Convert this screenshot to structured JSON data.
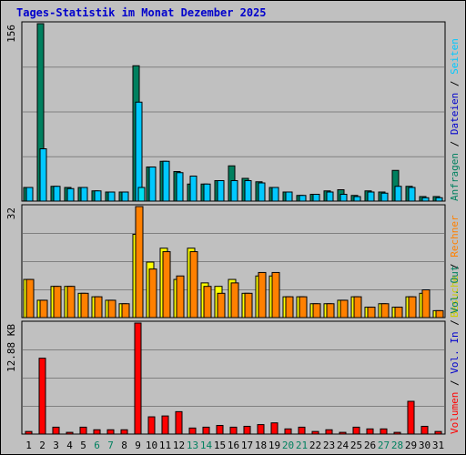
{
  "title": "Tages-Statistik im Monat Dezember 2025",
  "colors": {
    "anfragen": "#00805f",
    "dateien": "#00c8ff",
    "seiten": "#00e0f0",
    "besuche": "#ffff00",
    "rechner": "#ff8000",
    "volumen": "#ff0000",
    "weekend_label": "#00805f"
  },
  "legend": {
    "top": [
      {
        "text": "Anfragen",
        "color": "#00805f"
      },
      {
        "text": " / ",
        "color": "#000000"
      },
      {
        "text": "Dateien",
        "color": "#0000cc"
      },
      {
        "text": " / ",
        "color": "#000000"
      },
      {
        "text": "Seiten",
        "color": "#00c8ff"
      }
    ],
    "middle": [
      {
        "text": "Besuche",
        "color": "#cccc00"
      },
      {
        "text": " / ",
        "color": "#000000"
      },
      {
        "text": "Rechner",
        "color": "#ff8000"
      }
    ],
    "bottom": [
      {
        "text": "Volumen",
        "color": "#ff0000"
      },
      {
        "text": " / ",
        "color": "#000000"
      },
      {
        "text": "Vol. In",
        "color": "#0000cc"
      },
      {
        "text": " / ",
        "color": "#000000"
      },
      {
        "text": "Vol. Out",
        "color": "#00805f"
      }
    ]
  },
  "chart_data": {
    "type": "bar",
    "categories": [
      "1",
      "2",
      "3",
      "4",
      "5",
      "6",
      "7",
      "8",
      "9",
      "10",
      "11",
      "12",
      "13",
      "14",
      "15",
      "16",
      "17",
      "18",
      "19",
      "20",
      "21",
      "22",
      "23",
      "24",
      "25",
      "26",
      "27",
      "28",
      "29",
      "30",
      "31"
    ],
    "weekend_days": [
      "6",
      "7",
      "13",
      "14",
      "20",
      "21",
      "27",
      "28"
    ],
    "panels": [
      {
        "id": "hits",
        "ymax_label": "156",
        "ylim": [
          0,
          156
        ],
        "series": [
          {
            "name": "Anfragen",
            "values": [
              12,
              156,
              13,
              12,
              12,
              9,
              8,
              8,
              119,
              30,
              35,
              26,
              15,
              15,
              18,
              31,
              20,
              17,
              12,
              8,
              5,
              6,
              9,
              10,
              5,
              9,
              8,
              27,
              13,
              4,
              4
            ]
          },
          {
            "name": "Dateien",
            "values": [
              12,
              46,
              13,
              11,
              12,
              9,
              8,
              8,
              87,
              30,
              35,
              25,
              22,
              15,
              18,
              18,
              18,
              16,
              12,
              8,
              5,
              6,
              8,
              6,
              4,
              8,
              7,
              13,
              12,
              3,
              3
            ]
          },
          {
            "name": "Seiten",
            "values": [
              0,
              0,
              0,
              0,
              0,
              0,
              0,
              0,
              12,
              0,
              0,
              0,
              0,
              0,
              0,
              0,
              0,
              0,
              0,
              0,
              0,
              0,
              0,
              0,
              0,
              0,
              0,
              0,
              0,
              0,
              0
            ]
          }
        ]
      },
      {
        "id": "visits",
        "ymax_label": "32",
        "ylim": [
          0,
          32
        ],
        "series": [
          {
            "name": "Besuche",
            "values": [
              11,
              5,
              9,
              9,
              7,
              6,
              5,
              4,
              24,
              16,
              20,
              11,
              20,
              10,
              9,
              11,
              7,
              12,
              12,
              6,
              6,
              4,
              4,
              5,
              6,
              3,
              4,
              3,
              6,
              7,
              2
            ]
          },
          {
            "name": "Rechner",
            "values": [
              11,
              5,
              9,
              9,
              7,
              6,
              5,
              4,
              32,
              14,
              19,
              12,
              19,
              9,
              7,
              10,
              7,
              13,
              13,
              6,
              6,
              4,
              4,
              5,
              6,
              3,
              4,
              3,
              6,
              8,
              2
            ]
          }
        ]
      },
      {
        "id": "volume",
        "ymax_label": "12.88 KB",
        "ylim": [
          0,
          12.88
        ],
        "series": [
          {
            "name": "Volumen",
            "values": [
              0.3,
              8.8,
              0.8,
              0.2,
              0.8,
              0.5,
              0.5,
              0.5,
              12.88,
              2.0,
              2.1,
              2.6,
              0.7,
              0.8,
              1.0,
              0.8,
              0.9,
              1.1,
              1.3,
              0.6,
              0.8,
              0.3,
              0.5,
              0.2,
              0.8,
              0.6,
              0.6,
              0.2,
              3.8,
              0.9,
              0.3
            ]
          }
        ]
      }
    ]
  }
}
